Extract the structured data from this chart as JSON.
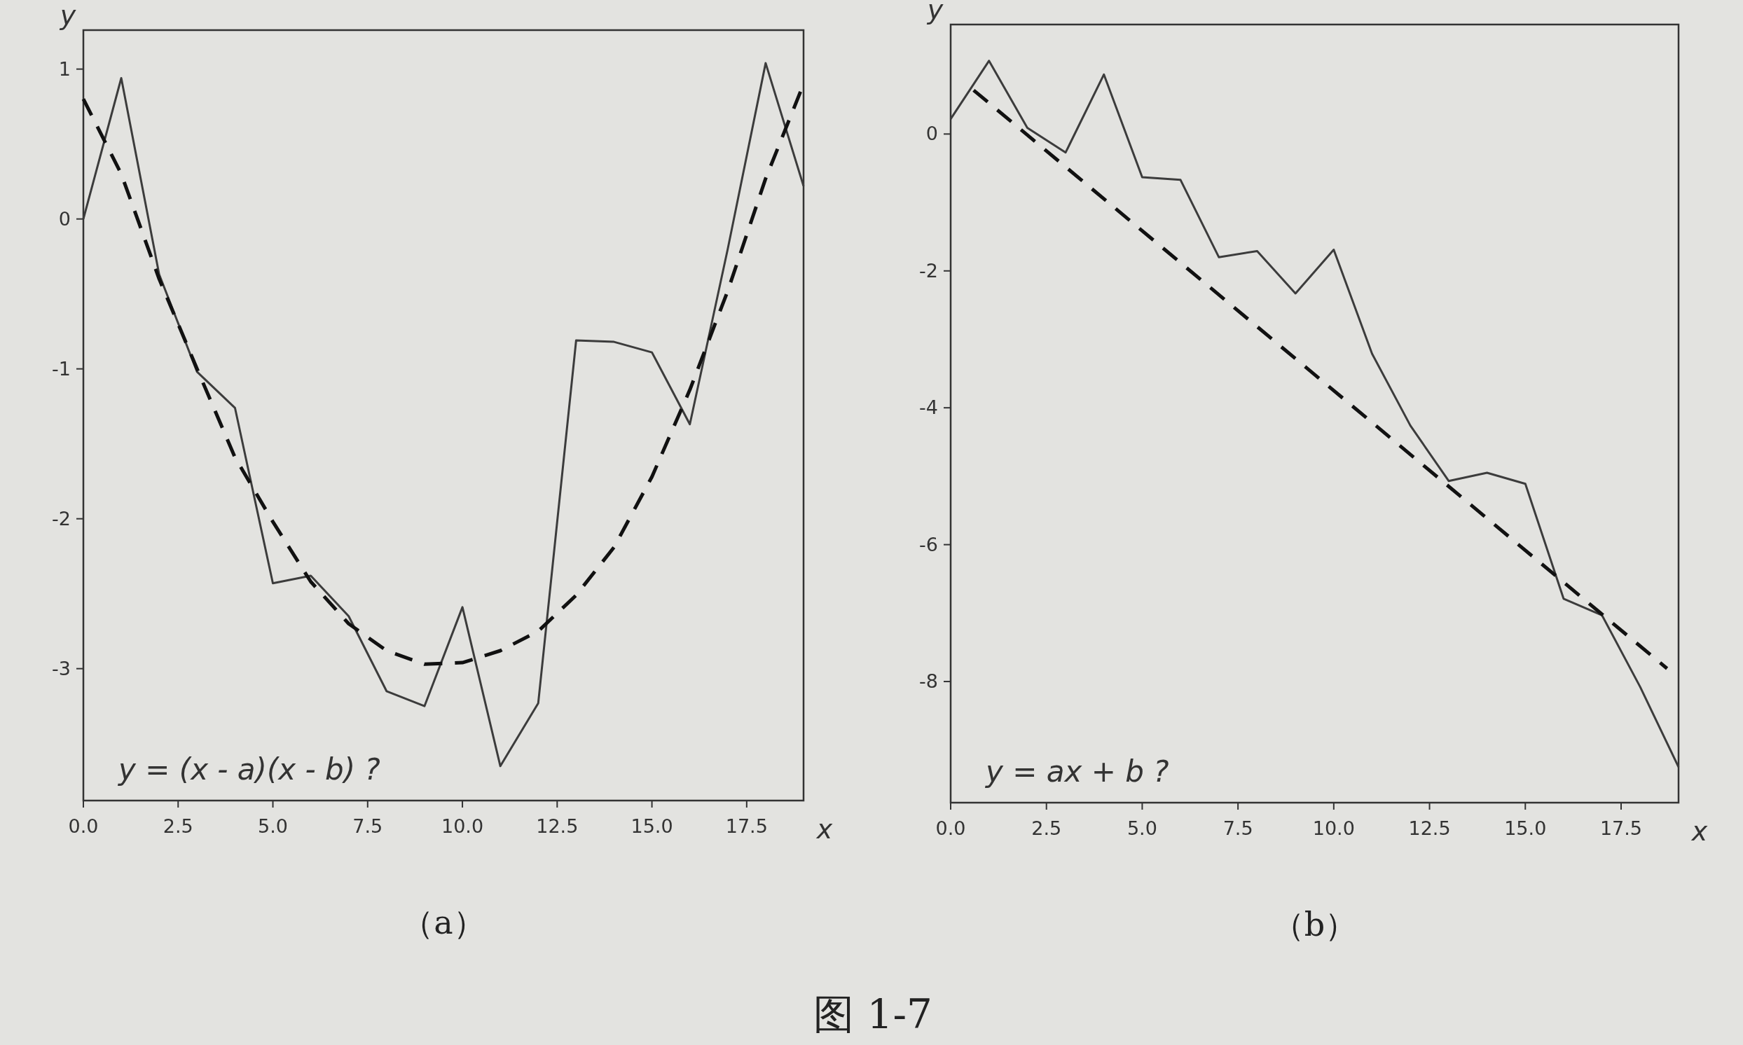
{
  "chart_data": [
    {
      "type": "line",
      "title": "（a）",
      "xlabel": "x",
      "ylabel": "y",
      "annotations": [
        "y = (x - a)(x - b) ?"
      ],
      "xlim": [
        0,
        19
      ],
      "ylim": [
        -3.88,
        1.26
      ],
      "xticks": [
        {
          "value": 0,
          "label": "0.0"
        },
        {
          "value": 2.5,
          "label": "2.5"
        },
        {
          "value": 5,
          "label": "5.0"
        },
        {
          "value": 7.5,
          "label": "7.5"
        },
        {
          "value": 10,
          "label": "10.0"
        },
        {
          "value": 12.5,
          "label": "12.5"
        },
        {
          "value": 15,
          "label": "15.0"
        },
        {
          "value": 17.5,
          "label": "17.5"
        }
      ],
      "yticks": [
        -3,
        -2,
        -1,
        0,
        1
      ],
      "series": [
        {
          "color": "#3c3c3c",
          "line_style": "solid",
          "x": [
            0,
            1,
            2,
            3,
            4,
            5,
            6,
            7,
            8,
            9,
            10,
            11,
            12,
            13,
            14,
            15,
            16,
            17,
            18,
            19
          ],
          "values": [
            0.0,
            0.94,
            -0.37,
            -1.02,
            -1.26,
            -2.43,
            -2.38,
            -2.65,
            -3.15,
            -3.25,
            -2.59,
            -3.65,
            -3.23,
            -0.81,
            -0.82,
            -0.89,
            -1.37,
            -0.2,
            1.04,
            0.22
          ]
        },
        {
          "color": "#111111",
          "line_style": "dashed",
          "x": [
            0,
            1,
            2,
            3,
            4,
            5,
            6,
            7,
            8,
            9,
            10,
            11,
            12,
            13,
            14,
            15,
            16,
            17,
            18,
            19
          ],
          "values": [
            0.8,
            0.3,
            -0.4,
            -1.0,
            -1.59,
            -2.02,
            -2.42,
            -2.7,
            -2.88,
            -2.97,
            -2.96,
            -2.88,
            -2.75,
            -2.51,
            -2.19,
            -1.72,
            -1.14,
            -0.48,
            0.27,
            0.9
          ]
        }
      ]
    },
    {
      "type": "line",
      "title": "（b）",
      "xlabel": "x",
      "ylabel": "y",
      "annotations": [
        "y = ax + b ?",
        "图 1-7"
      ],
      "xlim": [
        0,
        19
      ],
      "ylim": [
        -9.77,
        1.6
      ],
      "xticks": [
        {
          "value": 0,
          "label": "0.0"
        },
        {
          "value": 2.5,
          "label": "2.5"
        },
        {
          "value": 5,
          "label": "5.0"
        },
        {
          "value": 7.5,
          "label": "7.5"
        },
        {
          "value": 10,
          "label": "10.0"
        },
        {
          "value": 12.5,
          "label": "12.5"
        },
        {
          "value": 15,
          "label": "15.0"
        },
        {
          "value": 17.5,
          "label": "17.5"
        }
      ],
      "yticks": [
        -8,
        -6,
        -4,
        -2,
        0
      ],
      "series": [
        {
          "color": "#3c3c3c",
          "line_style": "solid",
          "x": [
            0,
            1,
            2,
            3,
            4,
            5,
            6,
            7,
            8,
            9,
            10,
            11,
            12,
            13,
            14,
            15,
            16,
            17,
            18,
            19
          ],
          "values": [
            0.22,
            1.07,
            0.09,
            -0.27,
            0.87,
            -0.63,
            -0.67,
            -1.8,
            -1.71,
            -2.33,
            -1.69,
            -3.21,
            -4.26,
            -5.07,
            -4.95,
            -5.11,
            -6.79,
            -7.03,
            -8.08,
            -9.25
          ]
        },
        {
          "color": "#111111",
          "line_style": "dashed",
          "x": [
            0.6,
            18.7
          ],
          "values": [
            0.64,
            -7.81
          ]
        }
      ]
    }
  ]
}
